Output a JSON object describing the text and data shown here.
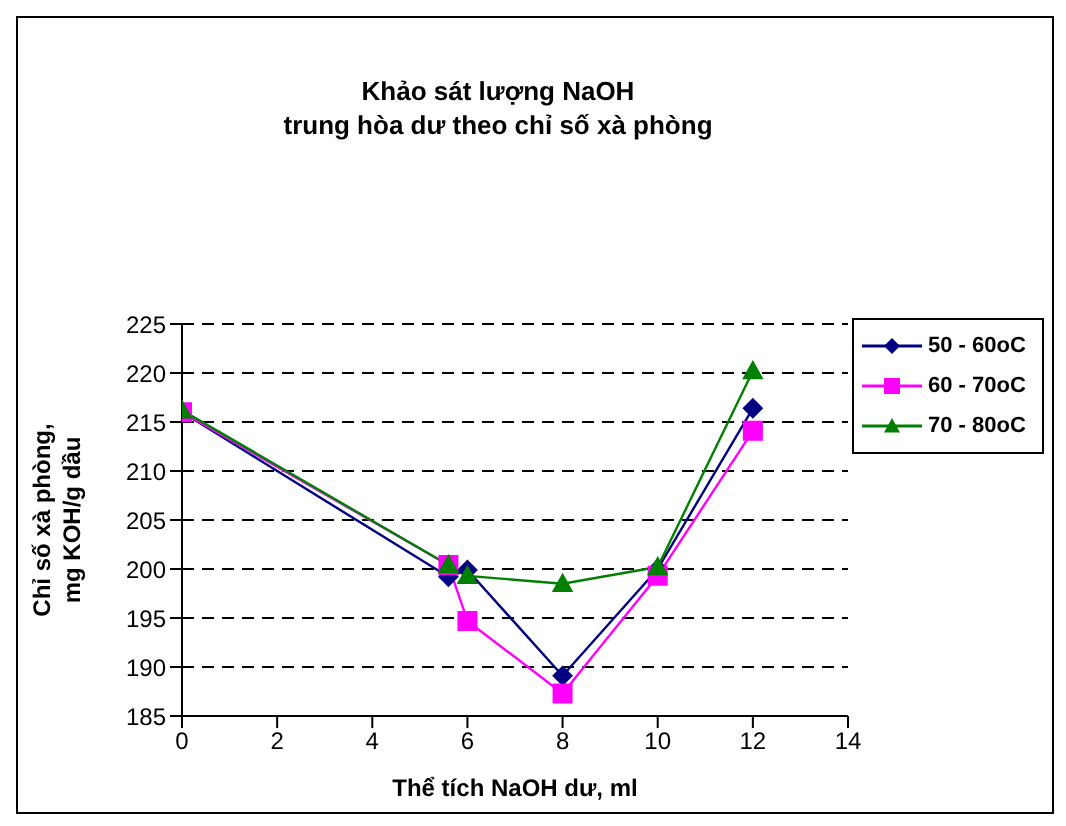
{
  "chart_data": {
    "type": "line",
    "title": "Khảo sát lượng NaOH\ntrung hòa dư theo chỉ số xà phòng",
    "xlabel": "Thể tích NaOH dư, ml",
    "ylabel": "Chỉ số xà phòng,\nmg KOH/g dầu",
    "x": [
      0,
      5.6,
      6,
      8,
      10,
      12
    ],
    "series": [
      {
        "name": "50 - 60oC",
        "color": "#000080",
        "marker": "diamond",
        "values": [
          216,
          199.2,
          199.9,
          189.1,
          200,
          216.4
        ]
      },
      {
        "name": "60 - 70oC",
        "color": "#ff00ff",
        "marker": "square",
        "values": [
          216,
          200.4,
          194.7,
          187.3,
          199.3,
          214.1
        ]
      },
      {
        "name": "70 - 80oC",
        "color": "#008000",
        "marker": "triangle",
        "values": [
          216.2,
          200.4,
          199.3,
          198.5,
          200.2,
          220.2
        ]
      }
    ],
    "xlim": [
      0,
      14
    ],
    "xticks": [
      0,
      2,
      4,
      6,
      8,
      10,
      12,
      14
    ],
    "ylim": [
      185,
      225
    ],
    "yticks": [
      185,
      190,
      195,
      200,
      205,
      210,
      215,
      220,
      225
    ],
    "grid": "y",
    "legend": "right",
    "line_style": "solid"
  }
}
